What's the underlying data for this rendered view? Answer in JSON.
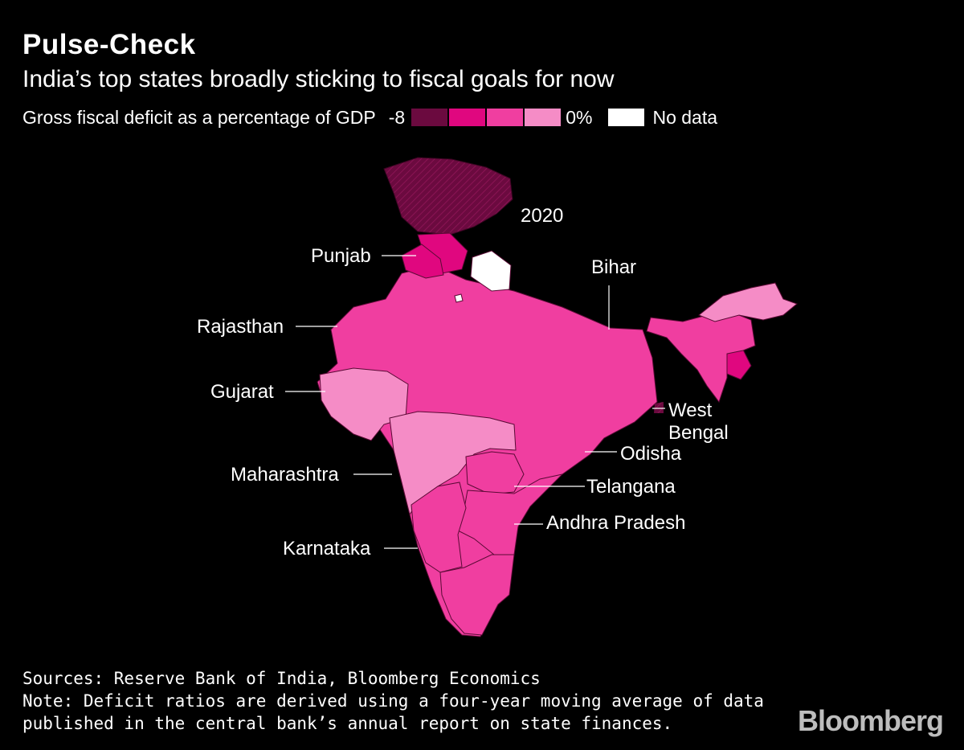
{
  "header": {
    "title": "Pulse-Check",
    "subtitle": "India’s top states broadly sticking to fiscal goals for now"
  },
  "legend": {
    "title": "Gross fiscal deficit as a percentage of GDP",
    "min_label": "-8",
    "max_label": "0%",
    "no_data_label": "No data",
    "colors": [
      "#6b0a3f",
      "#e0077f",
      "#f03ea0",
      "#f58cc6"
    ],
    "no_data_color": "#ffffff"
  },
  "map": {
    "year_label": "2020",
    "state_labels": {
      "punjab": "Punjab",
      "bihar": "Bihar",
      "rajasthan": "Rajasthan",
      "gujarat": "Gujarat",
      "west_bengal_line1": "West",
      "west_bengal_line2": "Bengal",
      "odisha": "Odisha",
      "maharashtra": "Maharashtra",
      "telangana": "Telangana",
      "andhra_pradesh": "Andhra Pradesh",
      "karnataka": "Karnataka"
    }
  },
  "footer": {
    "sources": "Sources: Reserve Bank of India, Bloomberg Economics",
    "note_line1": "Note: Deficit ratios are derived using a four-year moving average of data",
    "note_line2": "published in the central bank’s annual report on state finances."
  },
  "brand": {
    "logo_text": "Bloomberg"
  }
}
